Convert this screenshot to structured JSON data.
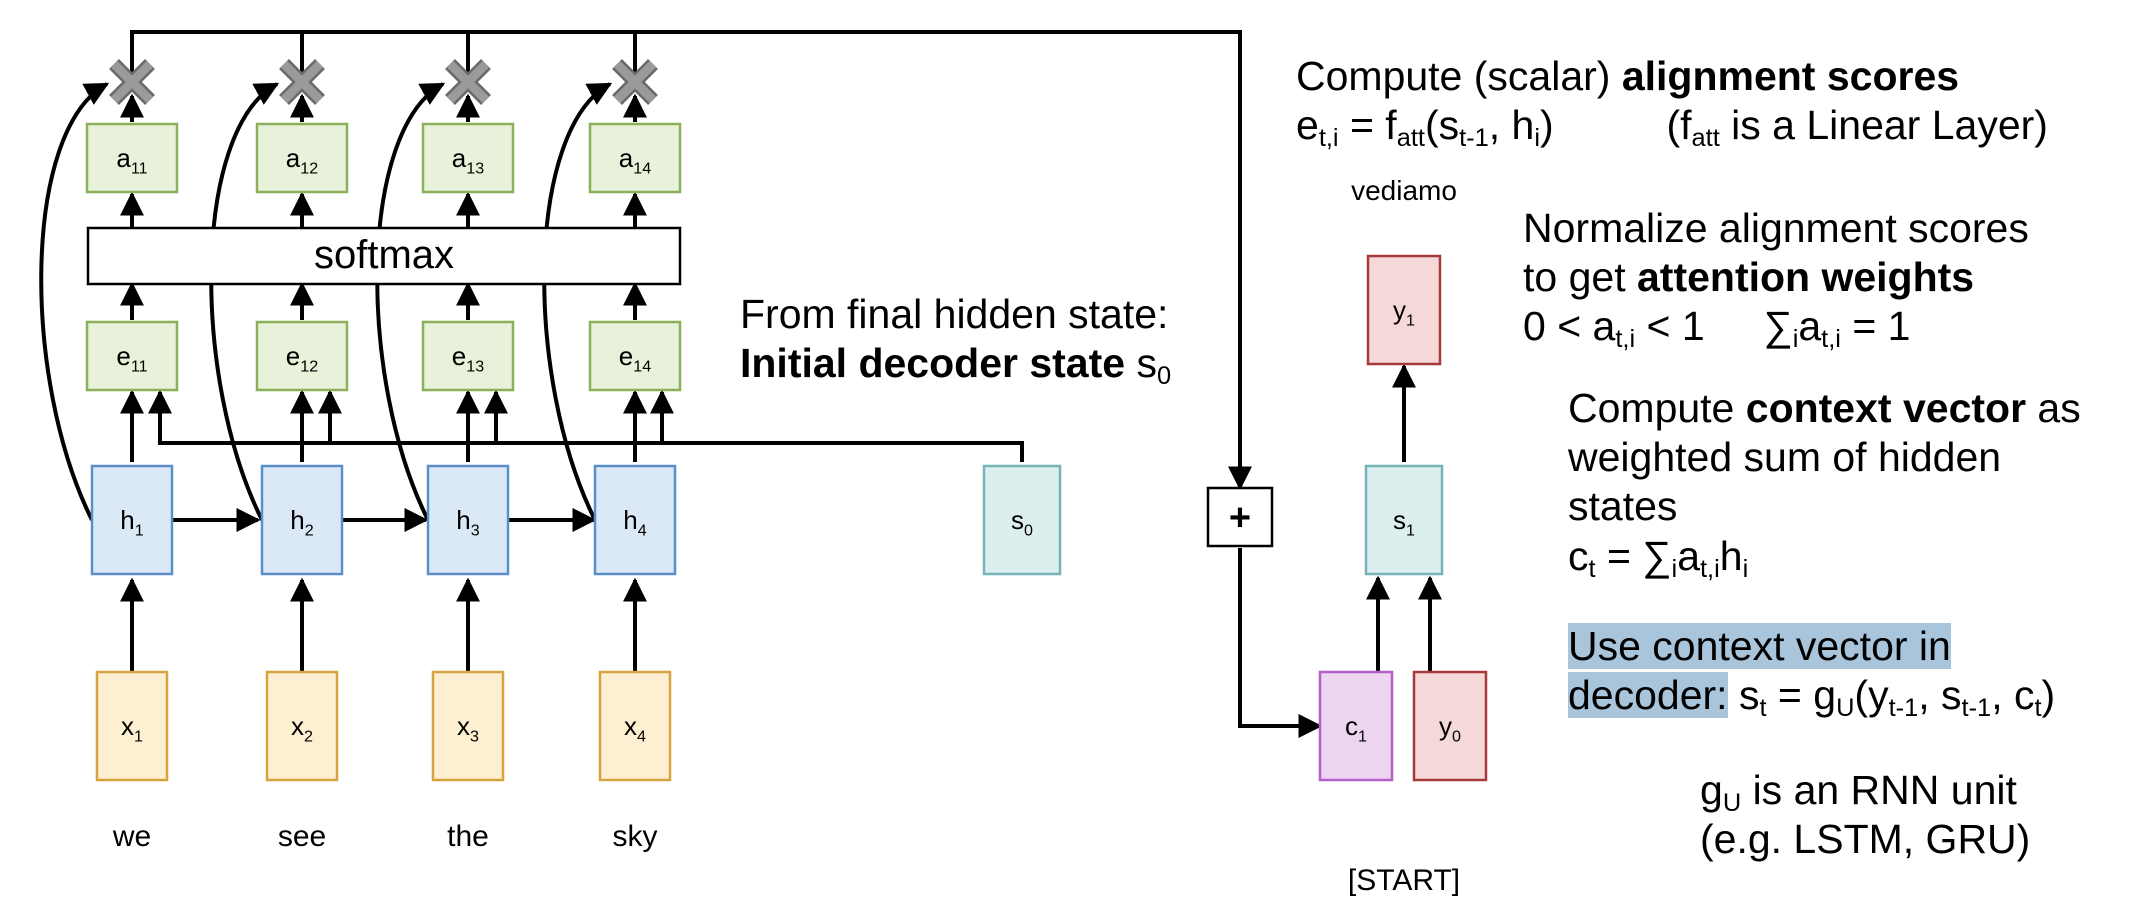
{
  "encoder": {
    "hidden": [
      {
        "base": "h",
        "sub": "1"
      },
      {
        "base": "h",
        "sub": "2"
      },
      {
        "base": "h",
        "sub": "3"
      },
      {
        "base": "h",
        "sub": "4"
      }
    ],
    "inputs": [
      {
        "base": "x",
        "sub": "1"
      },
      {
        "base": "x",
        "sub": "2"
      },
      {
        "base": "x",
        "sub": "3"
      },
      {
        "base": "x",
        "sub": "4"
      }
    ],
    "words": [
      "we",
      "see",
      "the",
      "sky"
    ],
    "scores": [
      {
        "base": "e",
        "sub": "11"
      },
      {
        "base": "e",
        "sub": "12"
      },
      {
        "base": "e",
        "sub": "13"
      },
      {
        "base": "e",
        "sub": "14"
      }
    ],
    "weights": [
      {
        "base": "a",
        "sub": "11"
      },
      {
        "base": "a",
        "sub": "12"
      },
      {
        "base": "a",
        "sub": "13"
      },
      {
        "base": "a",
        "sub": "14"
      }
    ],
    "softmax_label": "softmax"
  },
  "decoder": {
    "s0": {
      "base": "s",
      "sub": "0"
    },
    "s1": {
      "base": "s",
      "sub": "1"
    },
    "y1": {
      "base": "y",
      "sub": "1"
    },
    "c1": {
      "base": "c",
      "sub": "1"
    },
    "y0": {
      "base": "y",
      "sub": "0"
    },
    "plus": "+",
    "output_word": "vediamo",
    "start_token": "[START]"
  },
  "colors": {
    "hidden_fill": "#dbe8f5",
    "hidden_stroke": "#5b8fc9",
    "input_fill": "#fdefd2",
    "input_stroke": "#d6a43e",
    "score_fill": "#e8f1d9",
    "score_stroke": "#8cb05a",
    "state_fill": "#ddeeef",
    "state_stroke": "#77b3b7",
    "output_fill": "#f5d9d9",
    "output_stroke": "#a63a3a",
    "context_fill": "#edd5f2",
    "context_stroke": "#b55fc8",
    "highlight": "#a9c5db"
  },
  "text": {
    "initial_state": {
      "line1": "From final hidden state:",
      "bold": "Initial decoder state",
      "sym": "s",
      "sub": "0"
    },
    "alignment": {
      "pre": "Compute (scalar) ",
      "bold": "alignment scores",
      "formula": {
        "e": "e",
        "e_sub": "t,i",
        "eq": " = f",
        "f_sub": "att",
        "args1": "(s",
        "s_sub": "t-1",
        "args2": ", h",
        "h_sub": "i",
        "close": ")"
      },
      "note": {
        "open": "(f",
        "sub": "att",
        "rest": " is a Linear Layer)"
      }
    },
    "normalize": {
      "line1": "Normalize alignment scores",
      "line2_pre": "to get ",
      "line2_bold": "attention weights",
      "range": {
        "pre": "0 < a",
        "sub": "t,i",
        "post": " < 1"
      },
      "sum": {
        "sigma": "∑",
        "sub_i": "i",
        "a": "a",
        "sub_ti": "t,i",
        "post": " = 1"
      }
    },
    "context": {
      "pre": "Compute ",
      "bold": "context vector",
      "post": " as",
      "line2": "weighted sum of hidden",
      "line3": "states",
      "formula": {
        "c": "c",
        "c_sub": "t",
        "eq": " = ∑",
        "sub_i": "i",
        "a": "a",
        "sub_ti": "t,i",
        "h": "h",
        "h_sub": "i"
      }
    },
    "decoder_use": {
      "line1": "Use context vector in",
      "line2": "decoder:",
      "formula": {
        "s": " s",
        "s_sub": "t",
        "eq": " = g",
        "g_sub": "U",
        "a1": "(y",
        "y_sub": "t-1",
        "a2": ", s",
        "s2_sub": "t-1",
        "a3": ", c",
        "c_sub": "t",
        "close": ")"
      }
    },
    "rnn_unit": {
      "g": "g",
      "g_sub": "U",
      "rest": " is an RNN unit",
      "line2": "(e.g. LSTM, GRU)"
    }
  }
}
